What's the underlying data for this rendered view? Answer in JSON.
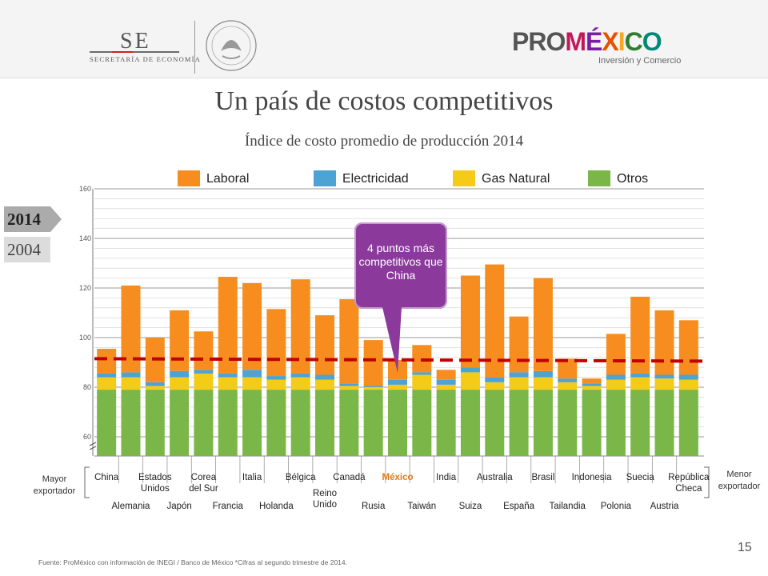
{
  "header": {
    "se_logo_big": "SE",
    "se_logo_small": "SECRETARÍA DE ECONOMÍA",
    "seal_text": "ESTADOS UNIDOS MEXICANOS",
    "promexico_logo": "PROMÉXICO",
    "promexico_tagline": "Inversión y Comercio"
  },
  "title": "Un país de costos competitivos",
  "subtitle": "Índice de costo promedio de producción 2014",
  "year_tabs": {
    "active": "2014",
    "inactive": "2004"
  },
  "callout": "4 puntos más competitivos que China",
  "side_labels": {
    "left": "Mayor exportador",
    "right": "Menor exportador"
  },
  "source": "Fuente: ProMéxico con información de INEGI / Banco de México *Cifras al segundo trimestre de 2014.",
  "page_number": "15",
  "colors": {
    "Laboral": "#f78d1e",
    "Electricidad": "#4ca3d4",
    "Gas Natural": "#f4cc17",
    "Otros": "#7ab648",
    "reference_line": "#c00000",
    "callout": "#8b3a9c"
  },
  "chart_data": {
    "type": "bar",
    "stacked": true,
    "ylim": [
      55,
      160
    ],
    "yticks": [
      60,
      80,
      100,
      120,
      140,
      160
    ],
    "axis_break": true,
    "grid": true,
    "legend_position": "top",
    "categories": [
      "China",
      "Alemania",
      "Estados Unidos",
      "Japón",
      "Corea del Sur",
      "Francia",
      "Italia",
      "Holanda",
      "Bélgica",
      "Reino Unido",
      "Canadá",
      "Rusia",
      "México",
      "Taiwán",
      "India",
      "Suiza",
      "Australia",
      "España",
      "Brasil",
      "Tailandia",
      "Indonesia",
      "Polonia",
      "Suecia",
      "Austria",
      "República Checa"
    ],
    "highlight_category": "México",
    "category_rows": [
      "top",
      "bottom",
      "top",
      "bottom",
      "top",
      "bottom",
      "top",
      "bottom",
      "top",
      "bottom",
      "top",
      "bottom",
      "top",
      "bottom",
      "top",
      "bottom",
      "top",
      "bottom",
      "top",
      "bottom",
      "top",
      "bottom",
      "top",
      "bottom",
      "top"
    ],
    "series": [
      {
        "name": "Otros",
        "values": [
          79,
          79,
          79,
          79,
          79,
          79,
          79,
          79,
          79,
          79,
          79,
          79,
          79,
          79,
          79,
          79,
          79,
          79,
          79,
          79,
          79,
          79,
          79,
          79,
          79
        ]
      },
      {
        "name": "Gas Natural",
        "values": [
          5,
          5,
          1.5,
          5,
          6.5,
          5,
          5,
          4,
          5,
          4,
          1.5,
          1,
          2,
          6,
          2,
          7,
          3,
          5,
          5,
          3,
          1.5,
          4,
          5,
          4.5,
          4
        ]
      },
      {
        "name": "Electricidad",
        "values": [
          1.5,
          2,
          1.5,
          2.5,
          1.5,
          1.5,
          3,
          1.5,
          1.5,
          2,
          1,
          0.5,
          2,
          1,
          2,
          2,
          2,
          2,
          2.5,
          1.5,
          1,
          2,
          1.5,
          1.5,
          2
        ]
      },
      {
        "name": "Laboral",
        "values": [
          10,
          35,
          18,
          24.5,
          15.5,
          39,
          35,
          27,
          38,
          24,
          34,
          18.5,
          8,
          11,
          4,
          37,
          45.5,
          22.5,
          37.5,
          8,
          2,
          16.5,
          31,
          26,
          22
        ]
      }
    ],
    "legend_order": [
      "Laboral",
      "Electricidad",
      "Gas Natural",
      "Otros"
    ],
    "reference_line": {
      "from_value": 91.5,
      "to_value": 90.5
    }
  }
}
